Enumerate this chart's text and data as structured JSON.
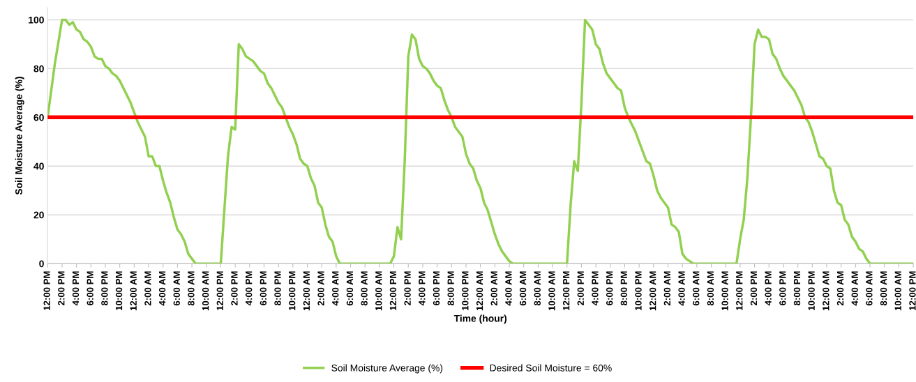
{
  "chart_data": {
    "type": "line",
    "xlabel": "Time (hour)",
    "ylabel": "Soil Moisture Average (%)",
    "ylim": [
      0,
      105
    ],
    "yticks": [
      0,
      20,
      40,
      60,
      80,
      100
    ],
    "categories": [
      "12:00 PM",
      null,
      null,
      null,
      "2:00 PM",
      null,
      null,
      null,
      "4:00 PM",
      null,
      null,
      null,
      "6:00 PM",
      null,
      null,
      null,
      "8:00 PM",
      null,
      null,
      null,
      "10:00 PM",
      null,
      null,
      null,
      "12:00 AM",
      null,
      null,
      null,
      "2:00 AM",
      null,
      null,
      null,
      "4:00 AM",
      null,
      null,
      null,
      "6:00 AM",
      null,
      null,
      null,
      "8:00 AM",
      null,
      null,
      null,
      "10:00 AM",
      null,
      null,
      null,
      "12:00 PM",
      null,
      null,
      null,
      "2:00 PM",
      null,
      null,
      null,
      "4:00 PM",
      null,
      null,
      null,
      "6:00 PM",
      null,
      null,
      null,
      "8:00 PM",
      null,
      null,
      null,
      "10:00 PM",
      null,
      null,
      null,
      "12:00 AM",
      null,
      null,
      null,
      "2:00 AM",
      null,
      null,
      null,
      "4:00 AM",
      null,
      null,
      null,
      "6:00 AM",
      null,
      null,
      null,
      "8:00 AM",
      null,
      null,
      null,
      "10:00 AM",
      null,
      null,
      null,
      "12:00 PM",
      null,
      null,
      null,
      "2:00 PM",
      null,
      null,
      null,
      "4:00 PM",
      null,
      null,
      null,
      "6:00 PM",
      null,
      null,
      null,
      "8:00 PM",
      null,
      null,
      null,
      "10:00 PM",
      null,
      null,
      null,
      "12:00 AM",
      null,
      null,
      null,
      "2:00 AM",
      null,
      null,
      null,
      "4:00 AM",
      null,
      null,
      null,
      "6:00 AM",
      null,
      null,
      null,
      "8:00 AM",
      null,
      null,
      null,
      "10:00 AM",
      null,
      null,
      null,
      "12:00 PM",
      null,
      null,
      null,
      "2:00 PM",
      null,
      null,
      null,
      "4:00 PM",
      null,
      null,
      null,
      "6:00 PM",
      null,
      null,
      null,
      "8:00 PM",
      null,
      null,
      null,
      "10:00 PM",
      null,
      null,
      null,
      "12:00 AM",
      null,
      null,
      null,
      "2:00 AM",
      null,
      null,
      null,
      "4:00 AM",
      null,
      null,
      null,
      "6:00 AM",
      null,
      null,
      null,
      "8:00 AM",
      null,
      null,
      null,
      "10:00 AM",
      null,
      null,
      null,
      "12:00 PM",
      null,
      null,
      null,
      "2:00 PM",
      null,
      null,
      null,
      "4:00 PM",
      null,
      null,
      null,
      "6:00 PM",
      null,
      null,
      null,
      "8:00 PM",
      null,
      null,
      null,
      "10:00 PM",
      null,
      null,
      null,
      "12:00 AM",
      null,
      null,
      null,
      "2:00 AM",
      null,
      null,
      null,
      "4:00 AM",
      null,
      null,
      null,
      "6:00 AM",
      null,
      null,
      null,
      "8:00 AM",
      null,
      null,
      null,
      "10:00 AM",
      null,
      null,
      null,
      "12:00 PM"
    ],
    "grid": "y",
    "legend": "bottom",
    "marker": "none",
    "line_style": "solid",
    "series": [
      {
        "name": "Soil Moisture Average (%)",
        "color": "#92d050",
        "values": [
          60,
          71,
          82,
          91,
          100,
          100,
          98,
          99,
          96,
          95,
          92,
          91,
          89,
          85,
          84,
          84,
          81,
          80,
          78,
          77,
          75,
          72,
          69,
          66,
          62,
          58,
          55,
          52,
          44,
          44,
          40,
          40,
          34,
          29,
          25,
          19,
          14,
          12,
          9,
          4,
          2,
          0,
          0,
          0,
          0,
          0,
          0,
          0,
          0,
          22,
          44,
          56,
          55,
          90,
          88,
          85,
          84,
          83,
          81,
          79,
          78,
          74,
          72,
          69,
          66,
          64,
          60,
          56,
          53,
          49,
          43,
          41,
          40,
          35,
          32,
          25,
          23,
          16,
          11,
          9,
          3,
          0,
          0,
          0,
          0,
          0,
          0,
          0,
          0,
          0,
          0,
          0,
          0,
          0,
          0,
          0,
          3,
          15,
          10,
          42,
          85,
          94,
          92,
          84,
          81,
          80,
          78,
          75,
          73,
          72,
          67,
          63,
          60,
          56,
          54,
          52,
          45,
          41,
          39,
          34,
          31,
          25,
          22,
          17,
          12,
          8,
          5,
          3,
          1,
          0,
          0,
          0,
          0,
          0,
          0,
          0,
          0,
          0,
          0,
          0,
          0,
          0,
          0,
          0,
          0,
          24,
          42,
          38,
          66,
          100,
          98,
          96,
          90,
          88,
          82,
          78,
          76,
          74,
          72,
          71,
          64,
          60,
          57,
          54,
          50,
          46,
          42,
          41,
          36,
          30,
          27,
          25,
          23,
          16,
          15,
          13,
          4,
          2,
          1,
          0,
          0,
          0,
          0,
          0,
          0,
          0,
          0,
          0,
          0,
          0,
          0,
          0,
          10,
          18,
          35,
          60,
          90,
          96,
          93,
          93,
          92,
          86,
          84,
          80,
          77,
          75,
          73,
          71,
          68,
          65,
          60,
          58,
          54,
          49,
          44,
          43,
          40,
          39,
          30,
          25,
          24,
          18,
          16,
          11,
          9,
          6,
          5,
          2,
          0,
          0,
          0,
          0,
          0,
          0,
          0,
          0,
          0,
          0,
          0,
          0,
          0
        ]
      }
    ],
    "ref_lines": [
      {
        "axis": "y",
        "value": 60,
        "label": "Desired Soil Moisture = 60%",
        "color": "#ff0000",
        "line_style": "solid"
      }
    ]
  }
}
